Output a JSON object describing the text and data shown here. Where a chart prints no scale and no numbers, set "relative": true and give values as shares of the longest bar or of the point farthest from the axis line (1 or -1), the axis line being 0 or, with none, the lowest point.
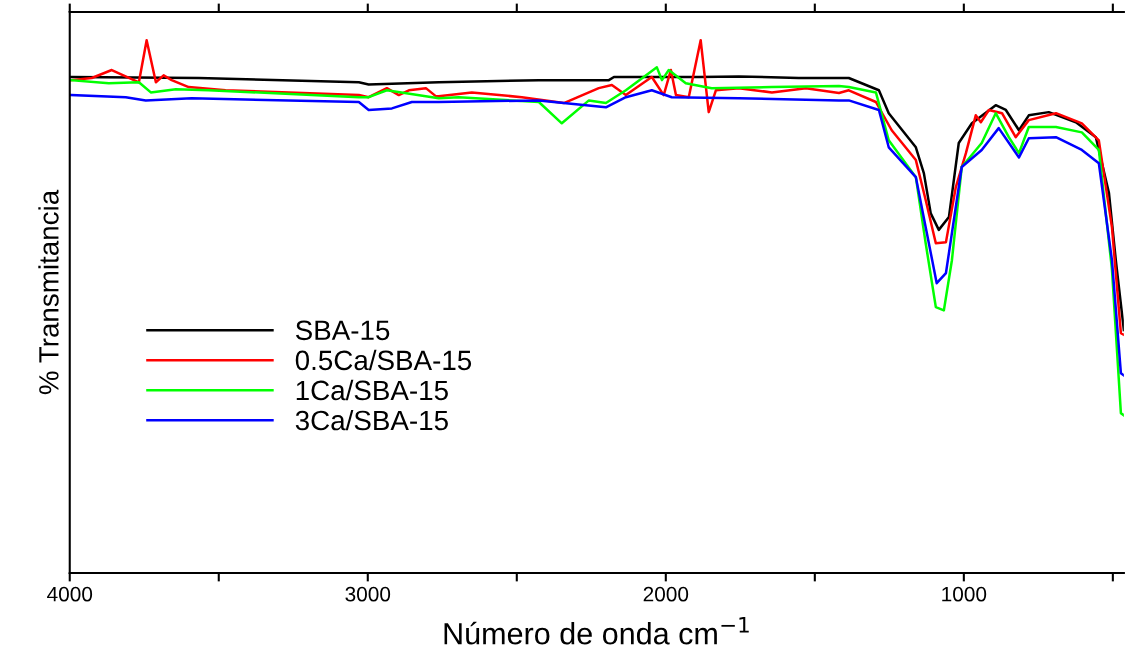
{
  "chart_data": {
    "type": "line",
    "relative": true,
    "xlabel": "Número de onda cm$^{−1}$",
    "ylabel": "% Transmitancia",
    "xlim": [
      4000,
      463
    ],
    "xticks": [
      4000,
      {
        "value": 3500,
        "label": null
      },
      3000,
      {
        "value": 2500,
        "label": null
      },
      2000,
      {
        "value": 1500,
        "label": null
      },
      1000,
      {
        "value": 500,
        "label": null
      }
    ],
    "tick_labels": "x",
    "grid": false,
    "legend": "bottom left",
    "marker": "none",
    "line_style": "solid",
    "series": [
      {
        "name": "SBA-15",
        "color": "#000000",
        "x": [
          3995,
          3567,
          3030,
          2997,
          2762,
          2426,
          2191,
          2174,
          1889,
          1755,
          1554,
          1386,
          1285,
          1252,
          1161,
          1134,
          1111,
          1084,
          1050,
          1017,
          973,
          893,
          859,
          815,
          782,
          715,
          624,
          557,
          513,
          490,
          463
        ],
        "values": [
          0.931,
          0.929,
          0.921,
          0.917,
          0.921,
          0.925,
          0.925,
          0.931,
          0.931,
          0.932,
          0.929,
          0.929,
          0.906,
          0.863,
          0.799,
          0.75,
          0.675,
          0.644,
          0.668,
          0.807,
          0.844,
          0.878,
          0.869,
          0.831,
          0.859,
          0.865,
          0.846,
          0.818,
          0.713,
          0.587,
          0.456
        ]
      },
      {
        "name": "0.5Ca/SBA-15",
        "color": "#ff0000",
        "x": [
          3995,
          3926,
          3859,
          3768,
          3742,
          3711,
          3685,
          3658,
          3601,
          3477,
          3030,
          2997,
          2936,
          2896,
          2862,
          2805,
          2772,
          2762,
          2651,
          2483,
          2342,
          2225,
          2181,
          2134,
          2047,
          2007,
          1983,
          1966,
          1923,
          1883,
          1856,
          1832,
          1755,
          1644,
          1530,
          1419,
          1386,
          1295,
          1242,
          1161,
          1128,
          1094,
          1060,
          1027,
          993,
          960,
          943,
          916,
          872,
          826,
          782,
          691,
          604,
          547,
          503,
          473,
          463
        ],
        "values": [
          0.925,
          0.929,
          0.944,
          0.921,
          1.0,
          0.921,
          0.934,
          0.925,
          0.912,
          0.906,
          0.897,
          0.893,
          0.91,
          0.897,
          0.906,
          0.91,
          0.895,
          0.895,
          0.902,
          0.893,
          0.882,
          0.91,
          0.916,
          0.897,
          0.931,
          0.897,
          0.944,
          0.897,
          0.893,
          1.0,
          0.865,
          0.906,
          0.91,
          0.902,
          0.91,
          0.901,
          0.906,
          0.884,
          0.831,
          0.775,
          0.7,
          0.619,
          0.621,
          0.724,
          0.788,
          0.859,
          0.846,
          0.869,
          0.863,
          0.818,
          0.85,
          0.863,
          0.844,
          0.812,
          0.649,
          0.45,
          0.447
        ]
      },
      {
        "name": "1Ca/SBA-15",
        "color": "#00ff00",
        "x": [
          3995,
          3869,
          3768,
          3728,
          3644,
          3534,
          3030,
          2997,
          2936,
          2762,
          2695,
          2426,
          2349,
          2258,
          2201,
          2134,
          2030,
          2013,
          1990,
          1933,
          1846,
          1644,
          1419,
          1386,
          1295,
          1252,
          1161,
          1128,
          1094,
          1067,
          1040,
          1007,
          940,
          893,
          849,
          815,
          782,
          691,
          604,
          547,
          503,
          473,
          463
        ],
        "values": [
          0.925,
          0.919,
          0.921,
          0.902,
          0.908,
          0.906,
          0.893,
          0.893,
          0.906,
          0.891,
          0.893,
          0.884,
          0.844,
          0.887,
          0.882,
          0.906,
          0.949,
          0.925,
          0.944,
          0.919,
          0.91,
          0.912,
          0.914,
          0.912,
          0.902,
          0.812,
          0.743,
          0.619,
          0.499,
          0.493,
          0.587,
          0.762,
          0.807,
          0.863,
          0.818,
          0.788,
          0.837,
          0.837,
          0.827,
          0.794,
          0.57,
          0.3,
          0.296
        ]
      },
      {
        "name": "3Ca/SBA-15",
        "color": "#0000ff",
        "x": [
          3995,
          3812,
          3745,
          3591,
          3030,
          2997,
          2919,
          2852,
          2762,
          2426,
          2201,
          2134,
          2047,
          1980,
          1755,
          1419,
          1386,
          1285,
          1252,
          1161,
          1128,
          1091,
          1060,
          1007,
          940,
          883,
          815,
          782,
          691,
          604,
          547,
          503,
          473,
          463
        ],
        "values": [
          0.897,
          0.893,
          0.887,
          0.891,
          0.884,
          0.869,
          0.872,
          0.884,
          0.884,
          0.887,
          0.874,
          0.893,
          0.906,
          0.893,
          0.891,
          0.887,
          0.887,
          0.869,
          0.799,
          0.743,
          0.649,
          0.544,
          0.563,
          0.762,
          0.794,
          0.835,
          0.78,
          0.816,
          0.818,
          0.794,
          0.769,
          0.587,
          0.375,
          0.371
        ]
      }
    ]
  }
}
